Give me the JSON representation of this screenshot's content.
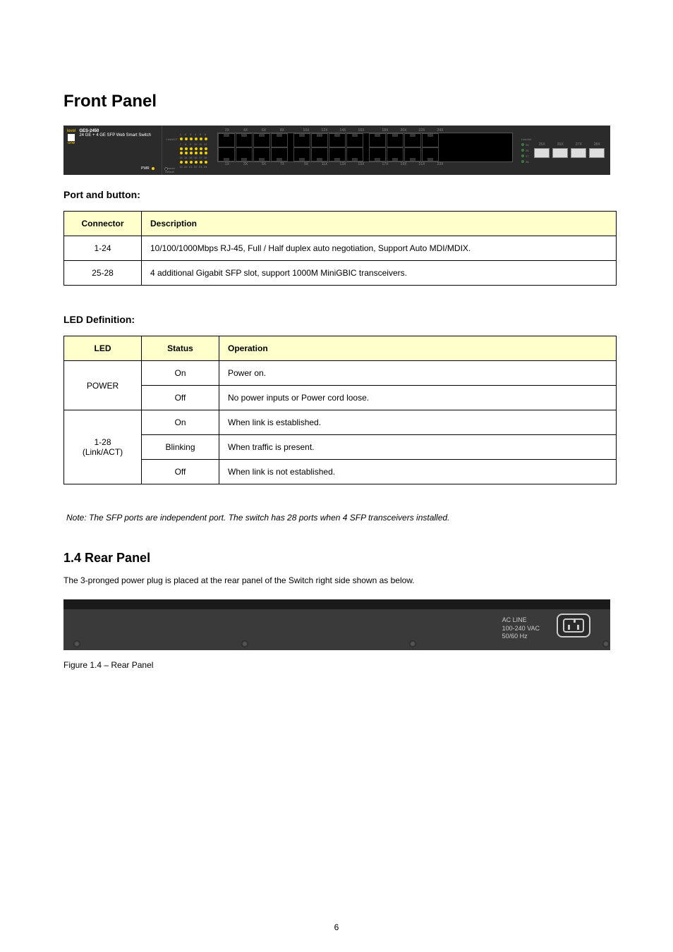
{
  "page": {
    "title": "Front Panel",
    "footer_page": "6"
  },
  "device_front": {
    "brand_top": "level",
    "brand_bottom": "one",
    "model": "GES-2450",
    "model_desc": "24 GE + 4 GE SFP Web Smart Switch",
    "pwr_label": "PWR",
    "restore_label_1": "Restore",
    "restore_label_2": "Default",
    "led_label": "Link/ACT",
    "led_row1_nums": [
      "1",
      "2",
      "3",
      "4",
      "5",
      "6"
    ],
    "led_row2_nums": [
      "7",
      "8",
      "9",
      "10",
      "11",
      "12"
    ],
    "led_row3_nums": [
      "13",
      "14",
      "15",
      "16",
      "17",
      "18"
    ],
    "led_row4_nums": [
      "19",
      "20",
      "21",
      "22",
      "23",
      "24"
    ],
    "port_top_labels": [
      "2X",
      "4X",
      "6X",
      "8X",
      "10X",
      "12X",
      "14X",
      "16X",
      "18X",
      "20X",
      "22X",
      "24X"
    ],
    "port_bottom_labels": [
      "1X",
      "3X",
      "5X",
      "7X",
      "9X",
      "11X",
      "13X",
      "15X",
      "17X",
      "19X",
      "21X",
      "23X"
    ],
    "sfp_led_label": "Link/Act",
    "sfp_led_nums": [
      "25",
      "26",
      "27",
      "28"
    ],
    "sfp_port_labels": [
      "25X",
      "26X",
      "27X",
      "28X"
    ]
  },
  "front_table": {
    "heading": "Port and button:",
    "header_col1": "Connector",
    "header_col2": "Description",
    "rows": [
      {
        "col1": "1-24",
        "col2": "10/100/1000Mbps RJ-45, Full / Half duplex auto negotiation, Support Auto MDI/MDIX."
      },
      {
        "col1": "25-28",
        "col2": "4 additional Gigabit SFP slot, support 1000M MiniGBIC transceivers."
      }
    ]
  },
  "led_table": {
    "heading": "LED Definition:",
    "header_col1": "LED",
    "header_col2": "Status",
    "header_col3": "Operation",
    "rows": [
      {
        "col1": "POWER",
        "rowspan1": 2,
        "col2": "On",
        "col3": "Power on."
      },
      {
        "col2": "Off",
        "col3": "No power inputs or Power cord loose."
      },
      {
        "col1": "1-28\n(Link/ACT)",
        "rowspan1": 3,
        "col2": "On",
        "col3": "When link is established."
      },
      {
        "col2": "Blinking",
        "col3": "When traffic is present."
      },
      {
        "col2": "Off",
        "col3": "When link is not established."
      }
    ]
  },
  "note": {
    "text": "Note: The SFP ports are independent port. The switch has 28 ports when 4 SFP transceivers installed."
  },
  "rear": {
    "title": "1.4 Rear Panel",
    "text": "The 3-pronged power plug is placed at the rear panel of the Switch right side shown as below.",
    "ac_label_l1": "AC LINE",
    "ac_label_l2": "100-240 VAC",
    "ac_label_l3": "50/60 Hz",
    "caption": "Figure 1.4 – Rear Panel",
    "screw_positions": [
      14,
      252,
      490,
      764
    ]
  },
  "colors": {
    "table_header_bg": "#ffffcc",
    "device_bg": "#2b2b2b",
    "rear_bg": "#3a3a3a",
    "led_yellow": "#f5d400",
    "led_green": "#3a7d3a"
  }
}
